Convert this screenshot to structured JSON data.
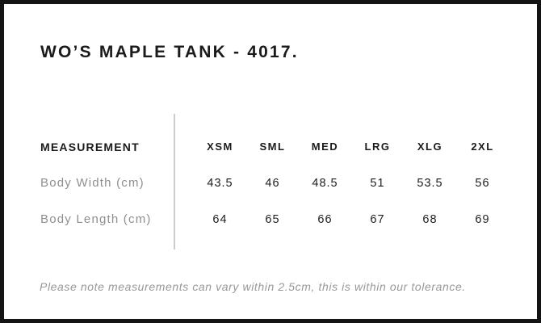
{
  "header": {
    "title": "WO’S MAPLE TANK - 4017."
  },
  "table": {
    "measurement_header": "MEASUREMENT",
    "size_headers": [
      "XSM",
      "SML",
      "MED",
      "LRG",
      "XLG",
      "2XL"
    ],
    "rows": [
      {
        "label": "Body Width (cm)",
        "values": [
          "43.5",
          "46",
          "48.5",
          "51",
          "53.5",
          "56"
        ]
      },
      {
        "label": "Body Length (cm)",
        "values": [
          "64",
          "65",
          "66",
          "67",
          "68",
          "69"
        ]
      }
    ]
  },
  "footer": {
    "note": "Please note measurements can vary within 2.5cm, this is within our tolerance."
  },
  "colors": {
    "text": "#1b1b1b",
    "muted_label": "#8f8f8f",
    "note_text": "#989898",
    "divider": "#cccccc",
    "border": "#141414",
    "background": "#ffffff"
  },
  "chart_data": {
    "type": "table",
    "title": "WO'S MAPLE TANK - 4017.",
    "columns": [
      "MEASUREMENT",
      "XSM",
      "SML",
      "MED",
      "LRG",
      "XLG",
      "2XL"
    ],
    "rows": [
      [
        "Body Width (cm)",
        43.5,
        46,
        48.5,
        51,
        53.5,
        56
      ],
      [
        "Body Length (cm)",
        64,
        65,
        66,
        67,
        68,
        69
      ]
    ],
    "note": "Please note measurements can vary within 2.5cm, this is within our tolerance."
  }
}
